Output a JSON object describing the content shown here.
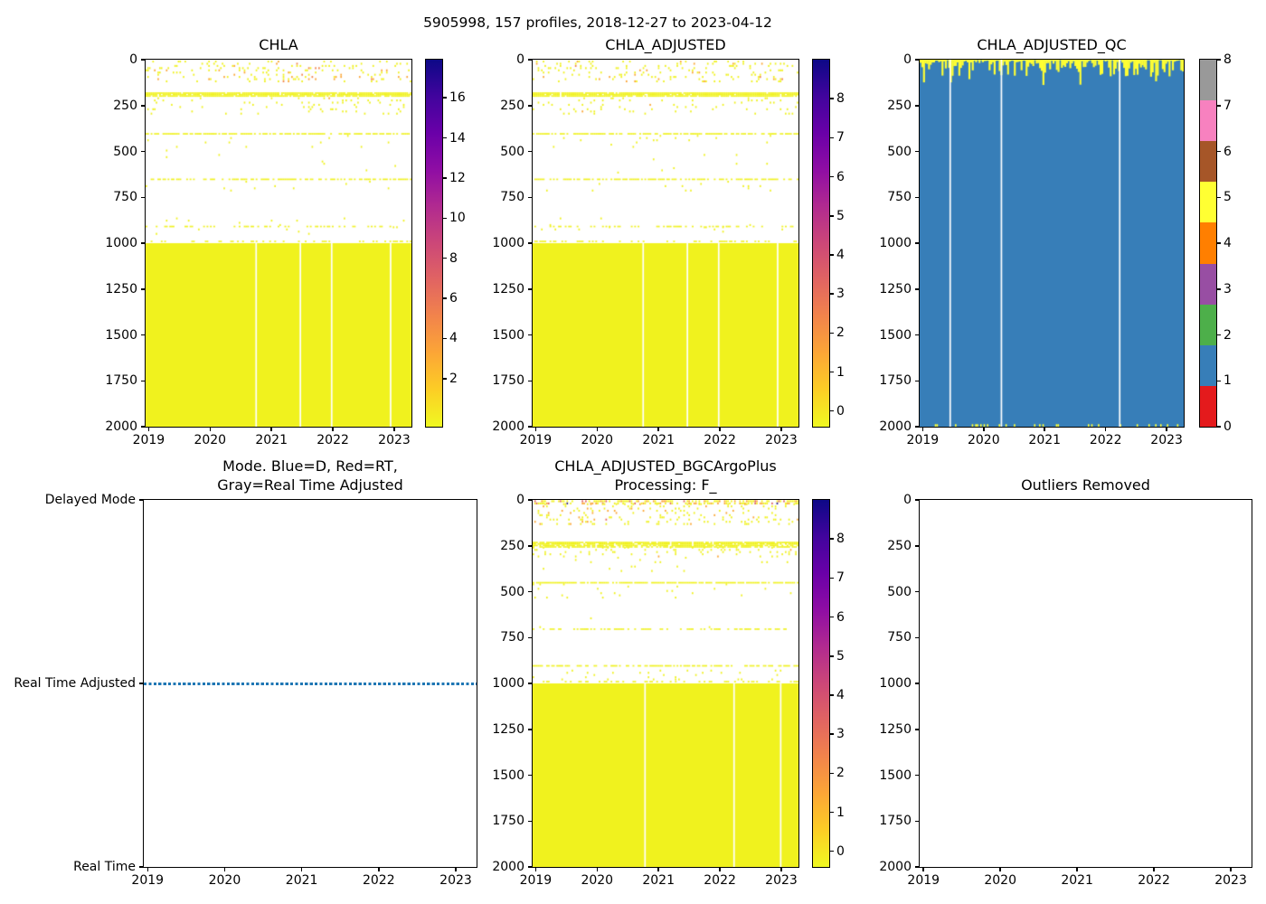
{
  "figure_title": "5905998, 157 profiles, 2018-12-27 to 2023-04-12",
  "colors": {
    "background": "#ffffff",
    "text": "#000000",
    "heat_yellow": "#f0f21e",
    "heat_orange": "#fca636",
    "heat_deep_orange": "#f2844b",
    "heat_red": "#e16462",
    "heat_navy": "#2b1c8f",
    "qc_blue": "#377eb8",
    "qc_yellow": "#ffff33",
    "mode_line": "#1f77b4",
    "plasma_r_stops": [
      "#f0f921",
      "#fcce25",
      "#fca636",
      "#f2844b",
      "#e16462",
      "#cc4778",
      "#b12a90",
      "#8f0da4",
      "#6a00a8",
      "#41049d",
      "#0d0887"
    ],
    "set1_qc_segments_bottom_to_top": [
      "#e41a1c",
      "#377eb8",
      "#4daf4a",
      "#984ea3",
      "#ff7f00",
      "#ffff33",
      "#a65628",
      "#f781bf",
      "#999999"
    ]
  },
  "chart_data": [
    {
      "title_lines": [
        "CHLA"
      ],
      "type": "heatmap",
      "seed": 11,
      "n_profiles": 157,
      "x": {
        "range": [
          2018.95,
          2023.28
        ],
        "tick_values": [
          2019,
          2020,
          2021,
          2022,
          2023
        ],
        "tick_labels": [
          "2019",
          "2020",
          "2021",
          "2022",
          "2023"
        ]
      },
      "y": {
        "range": [
          0,
          2000
        ],
        "inverted": true,
        "tick_values": [
          0,
          250,
          500,
          750,
          1000,
          1250,
          1500,
          1750,
          2000
        ],
        "tick_labels": [
          "0",
          "250",
          "500",
          "750",
          "1000",
          "1250",
          "1500",
          "1750",
          "2000"
        ]
      },
      "colorbar": {
        "type": "gradient",
        "colormap": "plasma_r",
        "vmin": -0.4,
        "vmax": 17.9,
        "tick_values": [
          2,
          4,
          6,
          8,
          10,
          12,
          14,
          16
        ],
        "tick_labels": [
          "2",
          "4",
          "6",
          "8",
          "10",
          "12",
          "14",
          "16"
        ]
      },
      "speckle_bands": [
        {
          "depth": [
            5,
            115
          ],
          "density": 0.11,
          "palette": [
            [
              "heat_yellow",
              0.82
            ],
            [
              "heat_orange",
              0.15
            ],
            [
              "heat_deep_orange",
              0.03
            ]
          ]
        },
        {
          "depth": [
            205,
            295
          ],
          "density": 0.06,
          "palette": [
            [
              "heat_yellow",
              0.97
            ],
            [
              "heat_orange",
              0.03
            ]
          ]
        },
        {
          "depth": [
            410,
            480
          ],
          "density": 0.018,
          "palette": [
            [
              "heat_yellow",
              1
            ]
          ]
        },
        {
          "depth": [
            490,
            620
          ],
          "density": 0.004,
          "palette": [
            [
              "heat_yellow",
              1
            ]
          ]
        },
        {
          "depth": [
            660,
            710
          ],
          "density": 0.01,
          "palette": [
            [
              "heat_yellow",
              1
            ]
          ]
        },
        {
          "depth": [
            860,
            955
          ],
          "density": 0.013,
          "palette": [
            [
              "heat_yellow",
              1
            ]
          ]
        }
      ],
      "hlines": [
        {
          "depth": 178,
          "coverage": 0.93
        },
        {
          "depth": 186,
          "coverage": 0.9
        },
        {
          "depth": 194,
          "coverage": 0.85
        },
        {
          "depth": 400,
          "coverage": 0.7
        },
        {
          "depth": 648,
          "coverage": 0.62
        },
        {
          "depth": 905,
          "coverage": 0.3
        },
        {
          "depth": 986,
          "coverage": 0.22
        }
      ],
      "solid_block": {
        "depth": [
          1000,
          2000
        ],
        "color": "heat_yellow",
        "gap_times": [
          2020.75,
          2021.47,
          2021.98,
          2022.94
        ]
      }
    },
    {
      "title_lines": [
        "CHLA_ADJUSTED"
      ],
      "type": "heatmap",
      "seed": 22,
      "n_profiles": 157,
      "x": {
        "range": [
          2018.95,
          2023.28
        ],
        "tick_values": [
          2019,
          2020,
          2021,
          2022,
          2023
        ],
        "tick_labels": [
          "2019",
          "2020",
          "2021",
          "2022",
          "2023"
        ]
      },
      "y": {
        "range": [
          0,
          2000
        ],
        "inverted": true,
        "tick_values": [
          0,
          250,
          500,
          750,
          1000,
          1250,
          1500,
          1750,
          2000
        ],
        "tick_labels": [
          "0",
          "250",
          "500",
          "750",
          "1000",
          "1250",
          "1500",
          "1750",
          "2000"
        ]
      },
      "colorbar": {
        "type": "gradient",
        "colormap": "plasma_r",
        "vmin": -0.4,
        "vmax": 9.0,
        "tick_values": [
          0,
          1,
          2,
          3,
          4,
          5,
          6,
          7,
          8
        ],
        "tick_labels": [
          "0",
          "1",
          "2",
          "3",
          "4",
          "5",
          "6",
          "7",
          "8"
        ]
      },
      "speckle_bands": [
        {
          "depth": [
            5,
            115
          ],
          "density": 0.11,
          "palette": [
            [
              "heat_yellow",
              0.85
            ],
            [
              "heat_orange",
              0.13
            ],
            [
              "heat_deep_orange",
              0.02
            ]
          ]
        },
        {
          "depth": [
            205,
            295
          ],
          "density": 0.06,
          "palette": [
            [
              "heat_yellow",
              0.97
            ],
            [
              "heat_orange",
              0.03
            ]
          ]
        },
        {
          "depth": [
            410,
            480
          ],
          "density": 0.018,
          "palette": [
            [
              "heat_yellow",
              1
            ]
          ]
        },
        {
          "depth": [
            490,
            620
          ],
          "density": 0.004,
          "palette": [
            [
              "heat_yellow",
              1
            ]
          ]
        },
        {
          "depth": [
            660,
            710
          ],
          "density": 0.01,
          "palette": [
            [
              "heat_yellow",
              1
            ]
          ]
        },
        {
          "depth": [
            860,
            955
          ],
          "density": 0.013,
          "palette": [
            [
              "heat_yellow",
              1
            ]
          ]
        }
      ],
      "hlines": [
        {
          "depth": 178,
          "coverage": 0.93
        },
        {
          "depth": 186,
          "coverage": 0.9
        },
        {
          "depth": 194,
          "coverage": 0.85
        },
        {
          "depth": 400,
          "coverage": 0.7
        },
        {
          "depth": 648,
          "coverage": 0.62
        },
        {
          "depth": 905,
          "coverage": 0.3
        },
        {
          "depth": 986,
          "coverage": 0.22
        }
      ],
      "solid_block": {
        "depth": [
          1000,
          2000
        ],
        "color": "heat_yellow",
        "gap_times": [
          2020.75,
          2021.47,
          2021.98,
          2022.94
        ]
      }
    },
    {
      "title_lines": [
        "CHLA_ADJUSTED_QC"
      ],
      "type": "qc_heatmap",
      "seed": 33,
      "n_profiles": 157,
      "x": {
        "range": [
          2018.95,
          2023.28
        ],
        "tick_values": [
          2019,
          2020,
          2021,
          2022,
          2023
        ],
        "tick_labels": [
          "2019",
          "2020",
          "2021",
          "2022",
          "2023"
        ]
      },
      "y": {
        "range": [
          0,
          2000
        ],
        "inverted": true,
        "tick_values": [
          0,
          250,
          500,
          750,
          1000,
          1250,
          1500,
          1750,
          2000
        ],
        "tick_labels": [
          "0",
          "250",
          "500",
          "750",
          "1000",
          "1250",
          "1500",
          "1750",
          "2000"
        ]
      },
      "colorbar": {
        "type": "discrete",
        "tick_values": [
          0,
          1,
          2,
          3,
          4,
          5,
          6,
          7,
          8
        ],
        "tick_labels": [
          "0",
          "1",
          "2",
          "3",
          "4",
          "5",
          "6",
          "7",
          "8"
        ],
        "n_segments": 9
      },
      "body": {
        "qc_value": 1,
        "color": "qc_blue"
      },
      "top_band": {
        "qc_value": 5,
        "color": "qc_yellow",
        "typical_depth": [
          5,
          95
        ]
      },
      "bottom_dashes": {
        "qc_value": 5,
        "color": "qc_yellow",
        "depth": [
          1986,
          2000
        ],
        "density": 0.2
      },
      "gap_times": [
        2019.45,
        2020.29,
        2022.23
      ]
    },
    {
      "title_lines": [
        "Mode. Blue=D, Red=RT,",
        "Gray=Real Time Adjusted"
      ],
      "type": "line",
      "x": {
        "range": [
          2018.95,
          2023.27
        ],
        "tick_values": [
          2019,
          2020,
          2021,
          2022,
          2023
        ],
        "tick_labels": [
          "2019",
          "2020",
          "2021",
          "2022",
          "2023"
        ]
      },
      "y_categories_top_to_bottom": [
        "Delayed Mode",
        "Real Time Adjusted",
        "Real Time"
      ],
      "series": [
        {
          "name": "mode",
          "value": "Real Time Adjusted",
          "color": "mode_line",
          "style": "dotted",
          "x_span": [
            2018.95,
            2023.27
          ]
        }
      ]
    },
    {
      "title_lines": [
        "CHLA_ADJUSTED_BGCArgoPlus",
        "Processing: F_"
      ],
      "type": "heatmap",
      "seed": 55,
      "n_profiles": 157,
      "x": {
        "range": [
          2018.95,
          2023.28
        ],
        "tick_values": [
          2019,
          2020,
          2021,
          2022,
          2023
        ],
        "tick_labels": [
          "2019",
          "2020",
          "2021",
          "2022",
          "2023"
        ]
      },
      "y": {
        "range": [
          0,
          2000
        ],
        "inverted": true,
        "tick_values": [
          0,
          250,
          500,
          750,
          1000,
          1250,
          1500,
          1750,
          2000
        ],
        "tick_labels": [
          "0",
          "250",
          "500",
          "750",
          "1000",
          "1250",
          "1500",
          "1750",
          "2000"
        ]
      },
      "colorbar": {
        "type": "gradient",
        "colormap": "plasma_r",
        "vmin": -0.4,
        "vmax": 9.0,
        "tick_values": [
          0,
          1,
          2,
          3,
          4,
          5,
          6,
          7,
          8
        ],
        "tick_labels": [
          "0",
          "1",
          "2",
          "3",
          "4",
          "5",
          "6",
          "7",
          "8"
        ]
      },
      "speckle_bands": [
        {
          "depth": [
            2,
            18
          ],
          "density": 0.5,
          "palette": [
            [
              "heat_yellow",
              0.6
            ],
            [
              "heat_orange",
              0.3
            ],
            [
              "heat_red",
              0.08
            ],
            [
              "heat_navy",
              0.02
            ]
          ]
        },
        {
          "depth": [
            18,
            130
          ],
          "density": 0.12,
          "palette": [
            [
              "heat_yellow",
              0.8
            ],
            [
              "heat_orange",
              0.18
            ],
            [
              "heat_red",
              0.02
            ]
          ]
        },
        {
          "depth": [
            255,
            305
          ],
          "density": 0.09,
          "palette": [
            [
              "heat_yellow",
              0.96
            ],
            [
              "heat_orange",
              0.04
            ]
          ]
        },
        {
          "depth": [
            310,
            390
          ],
          "density": 0.02,
          "palette": [
            [
              "heat_yellow",
              1
            ]
          ]
        },
        {
          "depth": [
            455,
            530
          ],
          "density": 0.018,
          "palette": [
            [
              "heat_yellow",
              1
            ]
          ]
        },
        {
          "depth": [
            640,
            690
          ],
          "density": 0.006,
          "palette": [
            [
              "heat_yellow",
              1
            ]
          ]
        },
        {
          "depth": [
            925,
            975
          ],
          "density": 0.05,
          "palette": [
            [
              "heat_yellow",
              1
            ]
          ]
        }
      ],
      "hlines": [
        {
          "depth": 228,
          "coverage": 0.9
        },
        {
          "depth": 236,
          "coverage": 0.88
        },
        {
          "depth": 244,
          "coverage": 0.8
        },
        {
          "depth": 252,
          "coverage": 0.7
        },
        {
          "depth": 447,
          "coverage": 0.85
        },
        {
          "depth": 700,
          "coverage": 0.42
        },
        {
          "depth": 900,
          "coverage": 0.6
        },
        {
          "depth": 986,
          "coverage": 0.28
        }
      ],
      "solid_block": {
        "depth": [
          1000,
          2000
        ],
        "color": "heat_yellow",
        "gap_times": [
          2020.78,
          2022.23,
          2022.99
        ]
      }
    },
    {
      "title_lines": [
        "Outliers Removed"
      ],
      "type": "empty",
      "x": {
        "range": [
          2018.95,
          2023.27
        ],
        "tick_values": [
          2019,
          2020,
          2021,
          2022,
          2023
        ],
        "tick_labels": [
          "2019",
          "2020",
          "2021",
          "2022",
          "2023"
        ]
      },
      "y": {
        "range": [
          0,
          2000
        ],
        "inverted": true,
        "tick_values": [
          0,
          250,
          500,
          750,
          1000,
          1250,
          1500,
          1750,
          2000
        ],
        "tick_labels": [
          "0",
          "250",
          "500",
          "750",
          "1000",
          "1250",
          "1500",
          "1750",
          "2000"
        ]
      }
    }
  ]
}
